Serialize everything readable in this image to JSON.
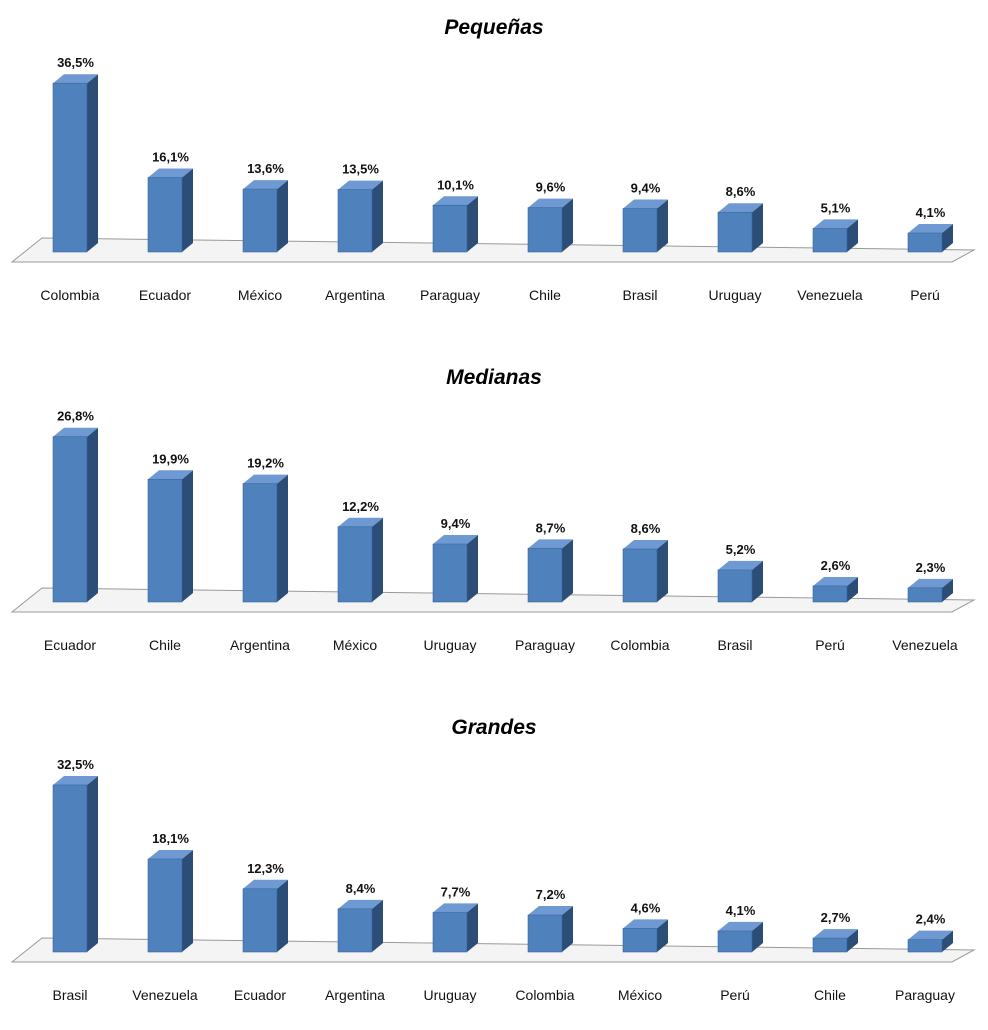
{
  "colors": {
    "bar_front": "#4F81BD",
    "bar_side": "#2C4D75",
    "bar_top": "#6E99D3",
    "floor": "#F4F4F4",
    "floor_edge": "#9A9A9A"
  },
  "chart_data": [
    {
      "type": "bar",
      "title": "Pequeñas",
      "categories": [
        "Colombia",
        "Ecuador",
        "México",
        "Argentina",
        "Paraguay",
        "Chile",
        "Brasil",
        "Uruguay",
        "Venezuela",
        "Perú"
      ],
      "values": [
        36.5,
        16.1,
        13.6,
        13.5,
        10.1,
        9.6,
        9.4,
        8.6,
        5.1,
        4.1
      ],
      "value_labels": [
        "36,5%",
        "16,1%",
        "13,6%",
        "13,5%",
        "10,1%",
        "9,6%",
        "9,4%",
        "8,6%",
        "5,1%",
        "4,1%"
      ],
      "ylim": [
        0,
        40
      ],
      "grid": false,
      "legend": "none"
    },
    {
      "type": "bar",
      "title": "Medianas",
      "categories": [
        "Ecuador",
        "Chile",
        "Argentina",
        "México",
        "Uruguay",
        "Paraguay",
        "Colombia",
        "Brasil",
        "Perú",
        "Venezuela"
      ],
      "values": [
        26.8,
        19.9,
        19.2,
        12.2,
        9.4,
        8.7,
        8.6,
        5.2,
        2.6,
        2.3
      ],
      "value_labels": [
        "26,8%",
        "19,9%",
        "19,2%",
        "12,2%",
        "9,4%",
        "8,7%",
        "8,6%",
        "5,2%",
        "2,6%",
        "2,3%"
      ],
      "ylim": [
        0,
        30
      ],
      "grid": false,
      "legend": "none"
    },
    {
      "type": "bar",
      "title": "Grandes",
      "categories": [
        "Brasil",
        "Venezuela",
        "Ecuador",
        "Argentina",
        "Uruguay",
        "Colombia",
        "México",
        "Perú",
        "Chile",
        "Paraguay"
      ],
      "values": [
        32.5,
        18.1,
        12.3,
        8.4,
        7.7,
        7.2,
        4.6,
        4.1,
        2.7,
        2.4
      ],
      "value_labels": [
        "32,5%",
        "18,1%",
        "12,3%",
        "8,4%",
        "7,7%",
        "7,2%",
        "4,6%",
        "4,1%",
        "2,7%",
        "2,4%"
      ],
      "ylim": [
        0,
        36
      ],
      "grid": false,
      "legend": "none"
    }
  ]
}
